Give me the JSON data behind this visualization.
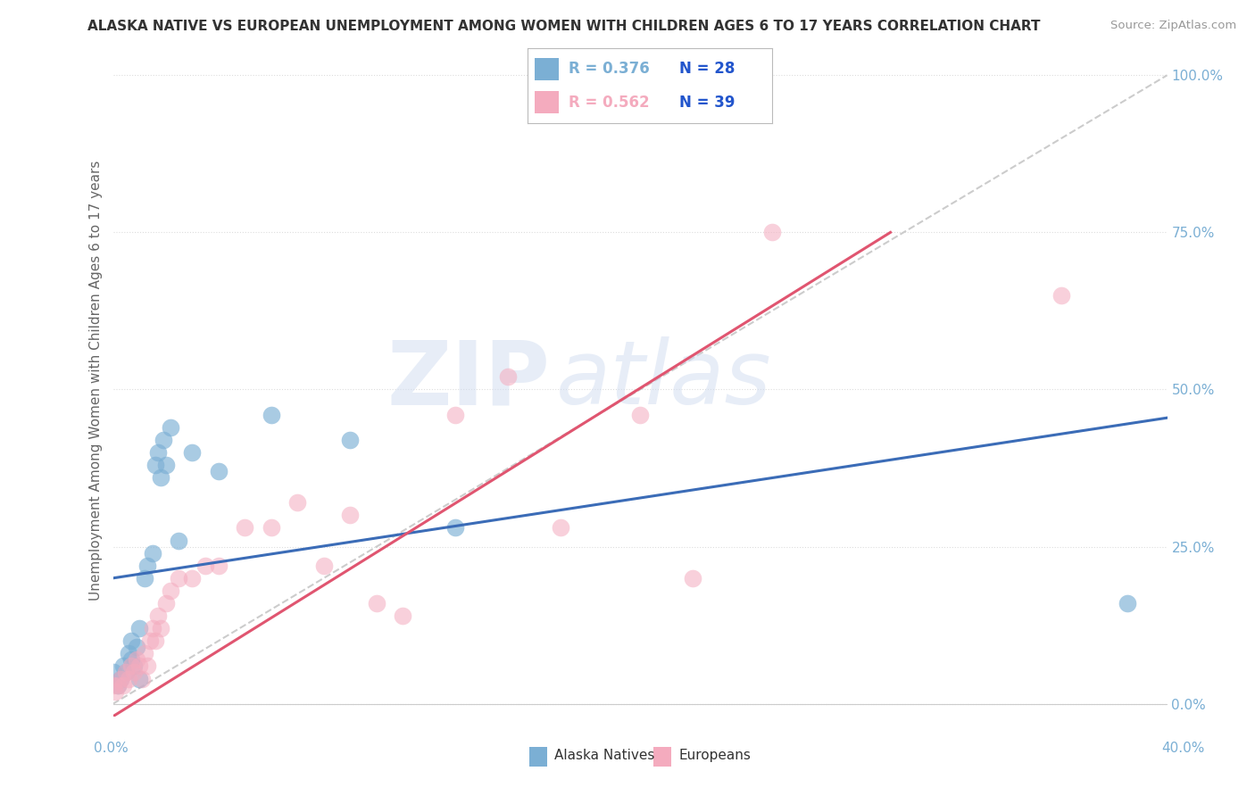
{
  "title": "ALASKA NATIVE VS EUROPEAN UNEMPLOYMENT AMONG WOMEN WITH CHILDREN AGES 6 TO 17 YEARS CORRELATION CHART",
  "source": "Source: ZipAtlas.com",
  "ylabel": "Unemployment Among Women with Children Ages 6 to 17 years",
  "color_blue": "#7BAFD4",
  "color_pink": "#F4ABBE",
  "color_trendline_blue": "#3B6CB7",
  "color_trendline_pink": "#E05570",
  "color_diagonal": "#CCCCCC",
  "background_color": "#FFFFFF",
  "watermark_text": "ZIP",
  "watermark_text2": "atlas",
  "xlim": [
    0.0,
    0.4
  ],
  "ylim": [
    -0.02,
    1.05
  ],
  "yticks": [
    0.0,
    0.25,
    0.5,
    0.75,
    1.0
  ],
  "ytick_labels": [
    "0.0%",
    "25.0%",
    "50.0%",
    "75.0%",
    "100.0%"
  ],
  "alaska_natives_x": [
    0.0,
    0.002,
    0.003,
    0.004,
    0.005,
    0.006,
    0.007,
    0.007,
    0.008,
    0.009,
    0.01,
    0.01,
    0.012,
    0.013,
    0.015,
    0.016,
    0.017,
    0.018,
    0.019,
    0.02,
    0.022,
    0.025,
    0.03,
    0.04,
    0.06,
    0.09,
    0.13,
    0.385
  ],
  "alaska_natives_y": [
    0.05,
    0.03,
    0.04,
    0.06,
    0.05,
    0.08,
    0.07,
    0.1,
    0.06,
    0.09,
    0.12,
    0.04,
    0.2,
    0.22,
    0.24,
    0.38,
    0.4,
    0.36,
    0.42,
    0.38,
    0.44,
    0.26,
    0.4,
    0.37,
    0.46,
    0.42,
    0.28,
    0.16
  ],
  "europeans_x": [
    0.0,
    0.001,
    0.002,
    0.003,
    0.004,
    0.005,
    0.006,
    0.007,
    0.008,
    0.009,
    0.01,
    0.011,
    0.012,
    0.013,
    0.014,
    0.015,
    0.016,
    0.017,
    0.018,
    0.02,
    0.022,
    0.025,
    0.03,
    0.035,
    0.04,
    0.05,
    0.06,
    0.07,
    0.08,
    0.09,
    0.1,
    0.11,
    0.13,
    0.15,
    0.17,
    0.2,
    0.22,
    0.25,
    0.36
  ],
  "europeans_y": [
    0.03,
    0.02,
    0.03,
    0.04,
    0.03,
    0.05,
    0.04,
    0.06,
    0.05,
    0.07,
    0.06,
    0.04,
    0.08,
    0.06,
    0.1,
    0.12,
    0.1,
    0.14,
    0.12,
    0.16,
    0.18,
    0.2,
    0.2,
    0.22,
    0.22,
    0.28,
    0.28,
    0.32,
    0.22,
    0.3,
    0.16,
    0.14,
    0.46,
    0.52,
    0.28,
    0.46,
    0.2,
    0.75,
    0.65
  ],
  "blue_trendline_x0": 0.0,
  "blue_trendline_y0": 0.2,
  "blue_trendline_x1": 0.4,
  "blue_trendline_y1": 0.455,
  "pink_trendline_x0": 0.0,
  "pink_trendline_y0": -0.02,
  "pink_trendline_x1": 0.295,
  "pink_trendline_y1": 0.75
}
